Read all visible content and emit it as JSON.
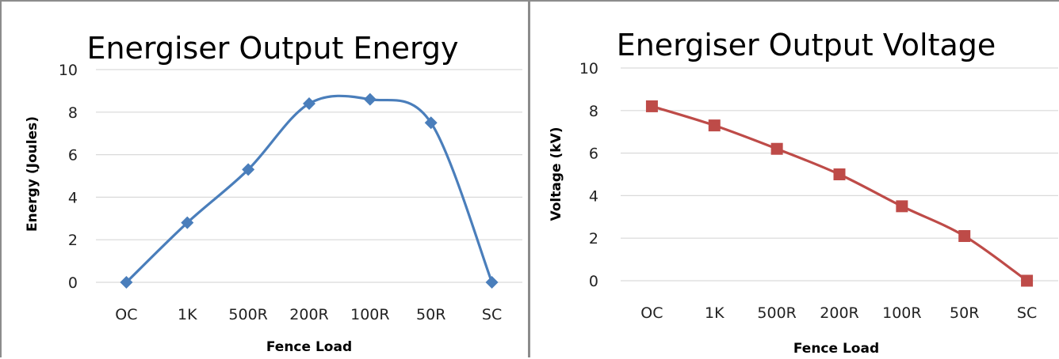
{
  "chart_data": [
    {
      "type": "line",
      "title": "Energiser Output Energy",
      "xlabel": "Fence Load",
      "ylabel": "Energy (Joules)",
      "categories": [
        "OC",
        "1K",
        "500R",
        "200R",
        "100R",
        "50R",
        "SC"
      ],
      "values": [
        0,
        2.8,
        5.3,
        8.4,
        8.6,
        7.5,
        0
      ],
      "ylim": [
        0,
        10
      ],
      "yticks": [
        "0",
        "2",
        "4",
        "6",
        "8",
        "10"
      ],
      "smooth": true,
      "marker": "diamond",
      "color": "#4a7ebb",
      "grid": true,
      "legend": "none"
    },
    {
      "type": "line",
      "title": "Energiser Output Voltage",
      "xlabel": "Fence Load",
      "ylabel": "Voltage (kV)",
      "categories": [
        "OC",
        "1K",
        "500R",
        "200R",
        "100R",
        "50R",
        "SC"
      ],
      "values": [
        8.2,
        7.3,
        6.2,
        5.0,
        3.5,
        2.1,
        0
      ],
      "ylim": [
        0,
        10
      ],
      "yticks": [
        "0",
        "2",
        "4",
        "6",
        "8",
        "10"
      ],
      "smooth": true,
      "marker": "square",
      "color": "#be4b48",
      "grid": true,
      "legend": "none"
    }
  ]
}
